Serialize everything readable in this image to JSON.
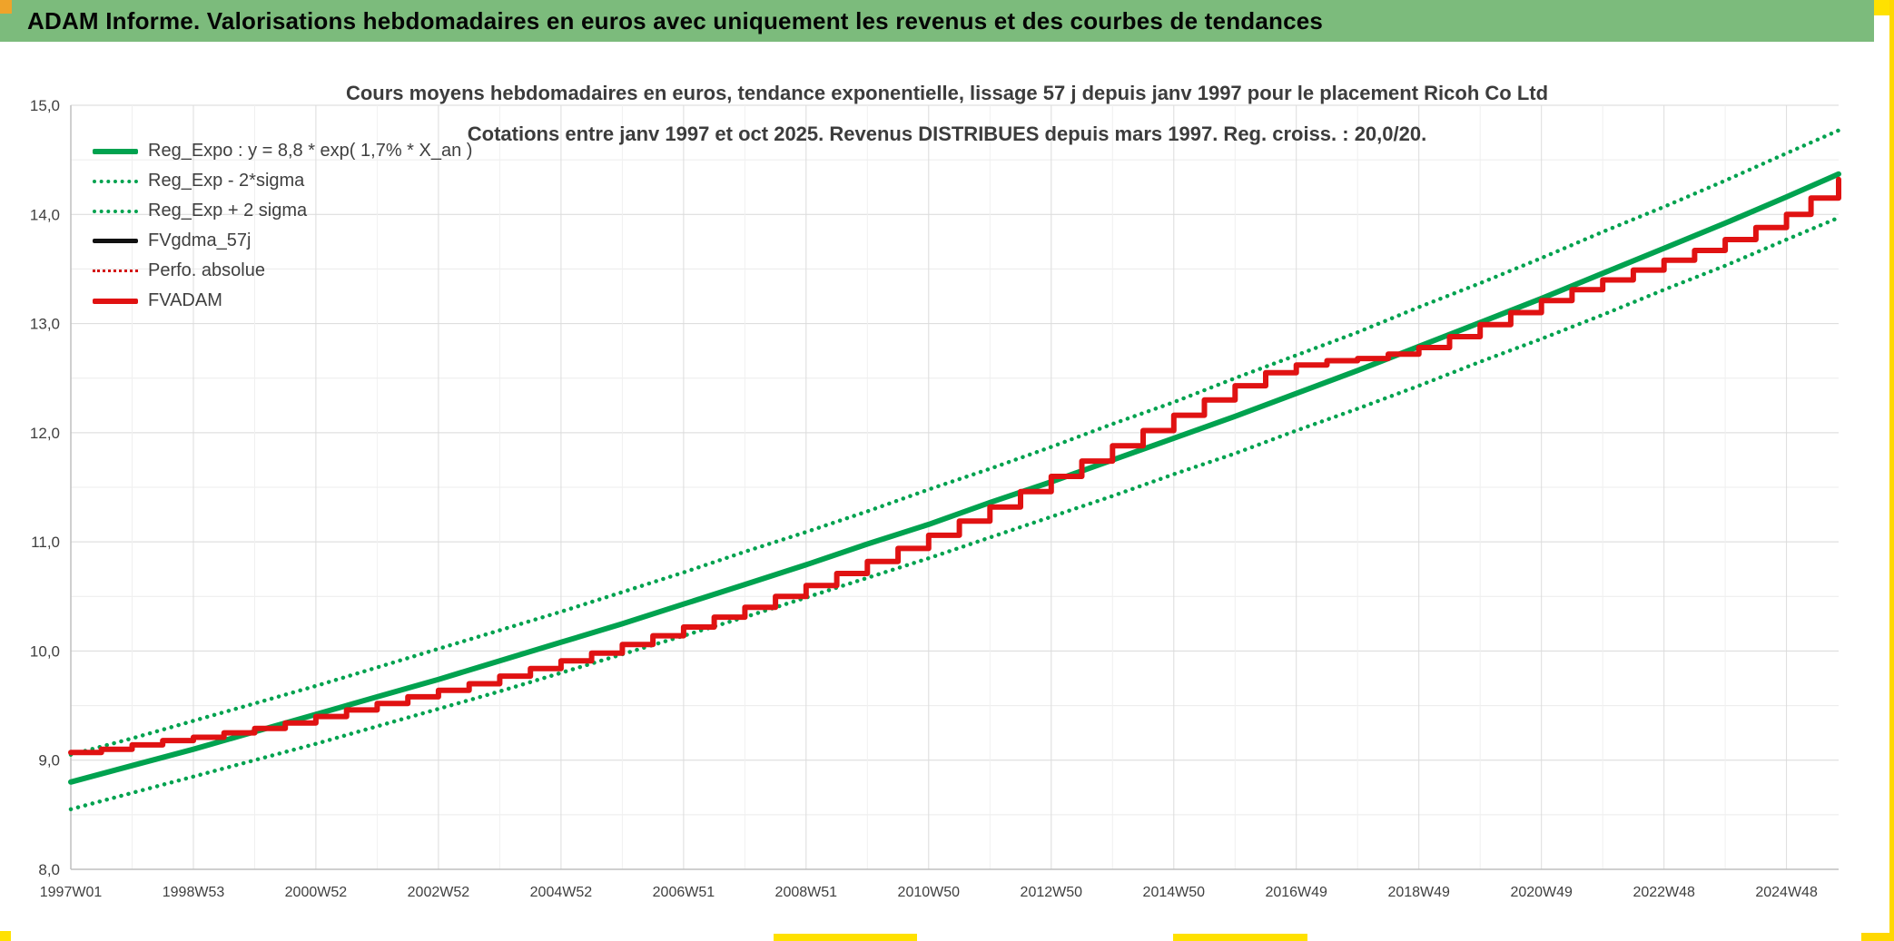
{
  "header": {
    "title": "ADAM Informe. Valorisations hebdomadaires en euros avec uniquement les revenus et des courbes de tendances"
  },
  "colors": {
    "header_bg": "#7cbb7c",
    "accent_orange": "#efa32a",
    "accent_yellow": "#ffe100",
    "line_green": "#00a24f",
    "line_red": "#e01212",
    "line_black": "#111111",
    "grid_major": "#d9d9d9",
    "grid_minor": "#ececec",
    "axis_line": "#bfbfbf",
    "axis_text": "#3f3f3f"
  },
  "chart_data": {
    "type": "line",
    "title": "Cours moyens hebdomadaires en euros, tendance exponentielle, lissage 57 j depuis janv 1997 pour le placement Ricoh Co Ltd",
    "subtitle": "Cotations entre janv 1997 et oct 2025. Revenus DISTRIBUES depuis mars 1997. Reg. croiss. : 20,0/20.",
    "legend_position": "top-left",
    "grid": true,
    "ylim": [
      8,
      15
    ],
    "y_major_step": 1,
    "y_minor_step": 0.5,
    "y_tick_labels": [
      "15,0",
      "14,0",
      "13,0",
      "12,0",
      "11,0",
      "10,0",
      "9,0",
      "8,0"
    ],
    "x_domain": [
      0,
      28.85
    ],
    "x_tick_years": [
      0,
      2,
      4,
      6,
      8,
      10,
      12,
      14,
      16,
      18,
      20,
      22,
      24,
      26,
      28
    ],
    "x_tick_labels": [
      "1997W01",
      "1998W53",
      "2000W52",
      "2002W52",
      "2004W52",
      "2006W51",
      "2008W51",
      "2010W50",
      "2012W50",
      "2014W50",
      "2016W49",
      "2018W49",
      "2020W49",
      "2022W48",
      "2024W48"
    ],
    "series": [
      {
        "name": "Reg_Expo : y = 8,8 * exp( 1,7% *  X_an )",
        "key": "reg_expo",
        "color": "#00a24f",
        "style": "solid",
        "width": 6,
        "step": false,
        "x": [
          0,
          1,
          2,
          3,
          4,
          5,
          6,
          7,
          8,
          9,
          10,
          11,
          12,
          13,
          14,
          15,
          16,
          17,
          18,
          19,
          20,
          21,
          22,
          23,
          24,
          25,
          26,
          27,
          28,
          28.85
        ],
        "y": [
          8.8,
          8.95,
          9.1,
          9.26,
          9.42,
          9.58,
          9.74,
          9.91,
          10.08,
          10.25,
          10.43,
          10.61,
          10.79,
          10.98,
          11.16,
          11.36,
          11.55,
          11.75,
          11.95,
          12.15,
          12.36,
          12.57,
          12.79,
          13.01,
          13.23,
          13.46,
          13.69,
          13.92,
          14.16,
          14.37
        ]
      },
      {
        "name": "Reg_Exp - 2*sigma",
        "key": "reg_exp_minus_2sigma",
        "color": "#00a24f",
        "style": "dotted",
        "width": 4.5,
        "step": false,
        "x": [
          0,
          1,
          2,
          3,
          4,
          5,
          6,
          7,
          8,
          9,
          10,
          11,
          12,
          13,
          14,
          15,
          16,
          17,
          18,
          19,
          20,
          21,
          22,
          23,
          24,
          25,
          26,
          27,
          28,
          28.85
        ],
        "y": [
          8.55,
          8.7,
          8.85,
          9.0,
          9.15,
          9.31,
          9.47,
          9.63,
          9.8,
          9.97,
          10.14,
          10.31,
          10.49,
          10.67,
          10.85,
          11.04,
          11.23,
          11.42,
          11.62,
          11.81,
          12.02,
          12.22,
          12.43,
          12.65,
          12.86,
          13.08,
          13.31,
          13.53,
          13.77,
          13.97
        ]
      },
      {
        "name": "Reg_Exp + 2 sigma",
        "key": "reg_exp_plus_2sigma",
        "color": "#00a24f",
        "style": "dotted",
        "width": 4.5,
        "step": false,
        "x": [
          0,
          1,
          2,
          3,
          4,
          5,
          6,
          7,
          8,
          9,
          10,
          11,
          12,
          13,
          14,
          15,
          16,
          17,
          18,
          19,
          20,
          21,
          22,
          23,
          24,
          25,
          26,
          27,
          28,
          28.85
        ],
        "y": [
          9.05,
          9.2,
          9.36,
          9.52,
          9.68,
          9.85,
          10.02,
          10.19,
          10.36,
          10.54,
          10.72,
          10.91,
          11.09,
          11.28,
          11.48,
          11.67,
          11.87,
          12.08,
          12.28,
          12.5,
          12.71,
          12.92,
          13.15,
          13.37,
          13.6,
          13.84,
          14.07,
          14.31,
          14.56,
          14.77
        ]
      },
      {
        "name": "FVgdma_57j",
        "key": "fvgdma_57j",
        "color": "#111111",
        "style": "solid",
        "width": 5,
        "step": true,
        "same_as": "fvadam"
      },
      {
        "name": "Perfo. absolue",
        "key": "perfo_absolue",
        "color": "#d40f0f",
        "style": "dotted",
        "width": 2.5,
        "step": true,
        "same_as": "fvadam"
      },
      {
        "name": "FVADAM",
        "key": "fvadam",
        "color": "#e01212",
        "style": "solid",
        "width": 6,
        "step": true,
        "x": [
          0,
          0.5,
          1,
          1.5,
          2,
          2.5,
          3,
          3.5,
          4,
          4.5,
          5,
          5.5,
          6,
          6.5,
          7,
          7.5,
          8,
          8.5,
          9,
          9.5,
          10,
          10.5,
          11,
          11.5,
          12,
          12.5,
          13,
          13.5,
          14,
          14.5,
          15,
          15.5,
          16,
          16.5,
          17,
          17.5,
          18,
          18.5,
          19,
          19.5,
          20,
          20.5,
          21,
          21.5,
          22,
          22.5,
          23,
          23.5,
          24,
          24.5,
          25,
          25.5,
          26,
          26.5,
          27,
          27.5,
          28,
          28.4,
          28.85
        ],
        "y": [
          9.07,
          9.1,
          9.14,
          9.18,
          9.21,
          9.25,
          9.29,
          9.34,
          9.4,
          9.46,
          9.52,
          9.58,
          9.64,
          9.7,
          9.77,
          9.84,
          9.91,
          9.98,
          10.06,
          10.14,
          10.22,
          10.31,
          10.4,
          10.5,
          10.6,
          10.71,
          10.82,
          10.94,
          11.06,
          11.19,
          11.32,
          11.46,
          11.6,
          11.74,
          11.88,
          12.02,
          12.16,
          12.3,
          12.43,
          12.55,
          12.62,
          12.66,
          12.68,
          12.72,
          12.78,
          12.88,
          12.99,
          13.1,
          13.21,
          13.31,
          13.4,
          13.49,
          13.58,
          13.67,
          13.77,
          13.88,
          14.0,
          14.15,
          14.32
        ]
      }
    ]
  }
}
